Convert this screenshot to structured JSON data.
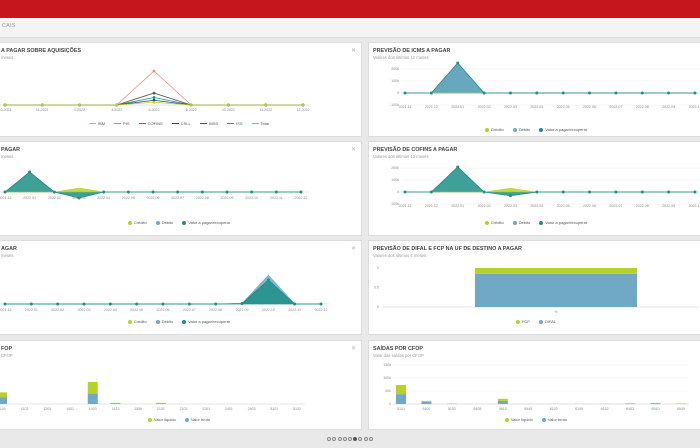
{
  "breadcrumb": "CAIS",
  "colors": {
    "credito": "#b6d22a",
    "debito": "#6fa9c6",
    "valor": "#1d8f86",
    "red": "#c4161c"
  },
  "cards": {
    "c1": {
      "title": "A PAGAR SOBRE AQUISIÇÕES",
      "subtitle": "meses",
      "legend": [
        "IBM",
        "PIS",
        "COFINS",
        "CSLL",
        "INSS",
        "ISS",
        "Total"
      ],
      "x_labels": [
        "10.2021",
        "11.2021",
        "1.2022",
        "4.2022",
        "6.2022",
        "8.2022",
        "10.2022",
        "11.2022",
        "12.2022"
      ]
    },
    "c2": {
      "title": "PREVISÃO DE ICMS A PAGAR",
      "subtitle": "Valores dos últimos 12 meses",
      "y_labels": [
        "200k",
        "100k",
        "0",
        "-100k"
      ],
      "x_labels": [
        "2021.11",
        "2021.12",
        "2022.01",
        "2022.02",
        "2022.03",
        "2022.04",
        "2022.05",
        "2022.06",
        "2022.07",
        "2022.08",
        "2022.09",
        "2022.10"
      ],
      "legend": [
        "Crédito",
        "Débito",
        "Valor a pagar/recuperar"
      ]
    },
    "c3": {
      "title": "PAGAR",
      "subtitle": "meses",
      "x_labels": [
        "2021.12",
        "2022.01",
        "2022.02",
        "2022.03",
        "2022.04",
        "2022.05",
        "2022.06",
        "2022.07",
        "2022.08",
        "2022.09",
        "2022.10",
        "2022.11",
        "2022.12"
      ],
      "legend": [
        "Crédito",
        "Débito",
        "Valor a pagar/recuperar"
      ]
    },
    "c4": {
      "title": "PREVISÃO DE COFINS A PAGAR",
      "subtitle": "Valores dos últimos 12 meses",
      "y_labels": [
        "200k",
        "100k",
        "0",
        "-100k"
      ],
      "x_labels": [
        "2021.11",
        "2021.12",
        "2022.01",
        "2022.02",
        "2022.03",
        "2022.04",
        "2022.05",
        "2022.06",
        "2022.07",
        "2022.08",
        "2022.09",
        "2022.10"
      ],
      "legend": [
        "Crédito",
        "Débito",
        "Valor a pagar/recuperar"
      ]
    },
    "c5": {
      "title": "AGAR",
      "subtitle": "meses",
      "x_labels": [
        "2021.12",
        "2022.01",
        "2022.02",
        "2022.03",
        "2022.04",
        "2022.05",
        "2022.06",
        "2022.07",
        "2022.08",
        "2022.09",
        "2022.10",
        "2022.11",
        "2022.12"
      ],
      "legend": [
        "Crédito",
        "Débito",
        "Valor a pagar/recuperar"
      ]
    },
    "c6": {
      "title": "PREVISÃO DE DIFAL E FCP NA UF DE DESTINO A PAGAR",
      "subtitle": "Valores dos últimos 6 meses",
      "y_labels": [
        "1",
        "0.5",
        "0"
      ],
      "x_label": "%",
      "legend": [
        "FCP",
        "DIFAL"
      ]
    },
    "c7": {
      "title": "FOP",
      "subtitle": "CFOP",
      "x_labels": [
        "1101",
        "1102",
        "1201",
        "1401",
        "1403",
        "1413",
        "1556",
        "2101",
        "2102",
        "2201",
        "2401",
        "2403",
        "5101",
        "5102"
      ],
      "legend": [
        "Valor líquido",
        "Valor bruto"
      ]
    },
    "c8": {
      "title": "SAÍDAS POR CFOP",
      "subtitle": "Valor das saídas por CFOP",
      "y_labels": [
        "150k",
        "100k",
        "50k",
        "0"
      ],
      "x_labels": [
        "5101",
        "5102",
        "5152",
        "5405",
        "5910",
        "5949",
        "6102",
        "6108",
        "6152",
        "6403",
        "6910",
        "6949"
      ],
      "legend": [
        "Valor líquido",
        "Valor bruto"
      ]
    }
  },
  "pager": {
    "count": 9,
    "active": 5
  },
  "chart_data": [
    {
      "type": "line",
      "title": "A PAGAR SOBRE AQUISIÇÕES",
      "categories": [
        "10.2021",
        "11.2021",
        "1.2022",
        "4.2022",
        "6.2022",
        "8.2022",
        "10.2022",
        "11.2022",
        "12.2022"
      ],
      "series": [
        {
          "name": "Total",
          "values": [
            0,
            0,
            0,
            0,
            100,
            0,
            0,
            0,
            0
          ]
        },
        {
          "name": "INSS",
          "values": [
            0,
            0,
            0,
            0,
            35,
            0,
            0,
            0,
            0
          ]
        },
        {
          "name": "COFINS",
          "values": [
            0,
            0,
            0,
            0,
            22,
            0,
            0,
            0,
            0
          ]
        },
        {
          "name": "CSLL",
          "values": [
            0,
            0,
            0,
            0,
            14,
            0,
            0,
            0,
            0
          ]
        },
        {
          "name": "PIS",
          "values": [
            0,
            0,
            0,
            0,
            8,
            0,
            0,
            0,
            0
          ]
        }
      ]
    },
    {
      "type": "area",
      "title": "PREVISÃO DE ICMS A PAGAR",
      "categories": [
        "2021.11",
        "2021.12",
        "2022.01",
        "2022.02",
        "2022.03",
        "2022.04",
        "2022.05",
        "2022.06",
        "2022.07",
        "2022.08",
        "2022.09",
        "2022.10"
      ],
      "series": [
        {
          "name": "Valor a pagar/recuperar",
          "values": [
            0,
            0,
            240000,
            0,
            0,
            0,
            0,
            0,
            0,
            0,
            0,
            0
          ]
        },
        {
          "name": "Débito",
          "values": [
            0,
            0,
            240000,
            0,
            0,
            0,
            0,
            0,
            0,
            0,
            0,
            0
          ]
        },
        {
          "name": "Crédito",
          "values": [
            0,
            0,
            0,
            0,
            0,
            0,
            0,
            0,
            0,
            0,
            0,
            0
          ]
        }
      ]
    },
    {
      "type": "area",
      "title": "PAGAR",
      "categories": [
        "2021.12",
        "2022.01",
        "2022.02",
        "2022.03",
        "2022.04",
        "2022.05",
        "2022.06",
        "2022.07",
        "2022.08",
        "2022.09",
        "2022.10",
        "2022.11",
        "2022.12"
      ],
      "series": [
        {
          "name": "Valor a pagar/recuperar",
          "values": [
            0,
            1,
            0,
            -0.3,
            0,
            0,
            0,
            0,
            0,
            0,
            0,
            0,
            0
          ]
        },
        {
          "name": "Crédito",
          "values": [
            0,
            0,
            0,
            0.2,
            0,
            0,
            0,
            0,
            0,
            0,
            0,
            0,
            0
          ]
        }
      ]
    },
    {
      "type": "area",
      "title": "PREVISÃO DE COFINS A PAGAR",
      "categories": [
        "2021.11",
        "2021.12",
        "2022.01",
        "2022.02",
        "2022.03",
        "2022.04",
        "2022.05",
        "2022.06",
        "2022.07",
        "2022.08",
        "2022.09",
        "2022.10"
      ],
      "series": [
        {
          "name": "Valor a pagar/recuperar",
          "values": [
            0,
            0,
            200000,
            0,
            -30000,
            0,
            0,
            0,
            0,
            0,
            0,
            0
          ]
        },
        {
          "name": "Crédito",
          "values": [
            0,
            0,
            0,
            0,
            30000,
            0,
            0,
            0,
            0,
            0,
            0,
            0
          ]
        }
      ]
    },
    {
      "type": "area",
      "title": "AGAR",
      "categories": [
        "2021.12",
        "2022.01",
        "2022.02",
        "2022.03",
        "2022.04",
        "2022.05",
        "2022.06",
        "2022.07",
        "2022.08",
        "2022.09",
        "2022.10",
        "2022.11",
        "2022.12"
      ],
      "series": [
        {
          "name": "Débito",
          "values": [
            0,
            0,
            0,
            0,
            0,
            0,
            0,
            0,
            0,
            0.02,
            1.2,
            0,
            0
          ]
        },
        {
          "name": "Valor a pagar/recuperar",
          "values": [
            0,
            0,
            0,
            0,
            0,
            0,
            0,
            0,
            0,
            0.02,
            1,
            0,
            0
          ]
        }
      ]
    },
    {
      "type": "bar",
      "title": "PREVISÃO DE DIFAL E FCP NA UF DE DESTINO A PAGAR",
      "categories": [
        "%"
      ],
      "series": [
        {
          "name": "DIFAL",
          "values": [
            0.85
          ]
        },
        {
          "name": "FCP",
          "values": [
            0.15
          ]
        }
      ],
      "ylim": [
        0,
        1
      ]
    },
    {
      "type": "bar",
      "title": "FOP",
      "categories": [
        "1101",
        "1102",
        "1201",
        "1401",
        "1403",
        "1413",
        "1556",
        "2101",
        "2102",
        "2201",
        "2401",
        "2403",
        "5101",
        "5102"
      ],
      "series": [
        {
          "name": "Valor bruto",
          "values": [
            5,
            0,
            0,
            0,
            8,
            0.6,
            0,
            0.5,
            0,
            0,
            0,
            0,
            0,
            0
          ]
        },
        {
          "name": "Valor líquido",
          "values": [
            4,
            0,
            0,
            0,
            9,
            0.3,
            0,
            0.4,
            0,
            0,
            0,
            0,
            0,
            0
          ]
        }
      ]
    },
    {
      "type": "bar",
      "title": "SAÍDAS POR CFOP",
      "categories": [
        "5101",
        "5102",
        "5152",
        "5405",
        "5910",
        "5949",
        "6102",
        "6108",
        "6152",
        "6403",
        "6910",
        "6949"
      ],
      "series": [
        {
          "name": "Valor bruto",
          "values": [
            38000,
            8000,
            1000,
            0,
            12000,
            0,
            0,
            0,
            0,
            0,
            3000,
            0
          ]
        },
        {
          "name": "Valor líquido",
          "values": [
            35000,
            4000,
            500,
            0,
            8000,
            500,
            500,
            500,
            1000,
            3000,
            500,
            2000
          ]
        }
      ],
      "ylim": [
        0,
        150000
      ]
    }
  ]
}
